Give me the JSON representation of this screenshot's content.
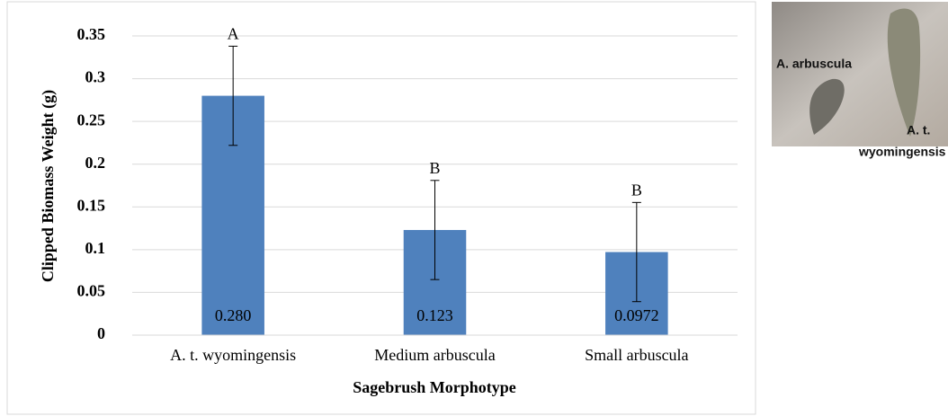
{
  "chart_data": {
    "type": "bar",
    "y_label": "Clipped  Biomass Weight (g)",
    "x_label": "Sagebrush Morphotype",
    "categories": [
      "A. t. wyomingensis",
      "Medium arbuscula",
      "Small arbuscula"
    ],
    "values": [
      0.28,
      0.123,
      0.0972
    ],
    "value_labels": [
      "0.280",
      "0.123",
      "0.0972"
    ],
    "errors": [
      0.058,
      0.058,
      0.058
    ],
    "letters": [
      "A",
      "B",
      "B"
    ],
    "color": "#4f81bd",
    "ylim": [
      0,
      0.35
    ],
    "yticks": [
      0,
      0.05,
      0.1,
      0.15,
      0.2,
      0.25,
      0.3,
      0.35
    ],
    "grid": true
  },
  "photo": {
    "labels": [
      "A. arbuscula",
      "A.  t.",
      "wyomingensis"
    ]
  }
}
